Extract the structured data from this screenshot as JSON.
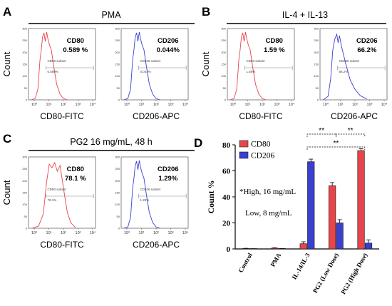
{
  "panels": {
    "A": {
      "letter": "A",
      "title": "PMA",
      "left": {
        "xlabel": "CD80-FITC",
        "marker": "CD80",
        "pct": "0.589 %",
        "subset_name": "CD80 subset",
        "subset_pct": "0.589%",
        "color": "#e8454a"
      },
      "right": {
        "xlabel": "CD206-APC",
        "marker": "CD206",
        "pct": "0.044%",
        "subset_name": "CD206 subset",
        "subset_pct": "0.044%",
        "color": "#3a3fd0"
      }
    },
    "B": {
      "letter": "B",
      "title": "IL-4 + IL-13",
      "left": {
        "xlabel": "CD80-FITC",
        "marker": "CD80",
        "pct": "1.59 %",
        "subset_name": "CD80 subset",
        "subset_pct": "1.59%",
        "color": "#e8454a"
      },
      "right": {
        "xlabel": "CD206-APC",
        "marker": "CD206",
        "pct": "66.2%",
        "subset_name": "CD206 subset",
        "subset_pct": "66.2%",
        "color": "#3a3fd0"
      }
    },
    "C": {
      "letter": "C",
      "title": "PG2 16 mg/mL, 48 h",
      "left": {
        "xlabel": "CD80-FITC",
        "marker": "CD80",
        "pct": "78.1 %",
        "subset_name": "CD80 subset",
        "subset_pct": "78.1%",
        "color": "#e8454a"
      },
      "right": {
        "xlabel": "CD206-APC",
        "marker": "CD206",
        "pct": "1.29%",
        "subset_name": "CD206 subset",
        "subset_pct": "1.29%",
        "color": "#3a3fd0"
      }
    },
    "D": {
      "letter": "D"
    }
  },
  "histogram_ylabel": "Count",
  "histogram_xticks": [
    "10⁰",
    "10¹",
    "10²",
    "10³",
    "10⁴"
  ],
  "histogram_yticks": [
    "0",
    "50",
    "100",
    "150",
    "200",
    "250",
    "300"
  ],
  "chart_data": {
    "type": "bar",
    "categories": [
      "Control",
      "PMA",
      "IL-14/IL-3",
      "PG2 (Low Dose)",
      "PG2 (High Dose)"
    ],
    "series": [
      {
        "name": "CD80",
        "color": "#e8454a",
        "values": [
          0.3,
          0.6,
          4.0,
          48.5,
          75.5
        ],
        "errors": [
          0.2,
          0.3,
          1.5,
          2.5,
          1.5
        ]
      },
      {
        "name": "CD206",
        "color": "#3a3fd0",
        "values": [
          0.0,
          0.1,
          67.0,
          20.0,
          4.5
        ],
        "errors": [
          0.0,
          0.1,
          2.0,
          2.5,
          2.5
        ]
      }
    ],
    "ylabel": "Count %",
    "ylim": [
      0,
      80
    ],
    "yticks": [
      0,
      20,
      40,
      60,
      80
    ],
    "legend": "top-left",
    "annotations": [
      "*High, 16 mg/mL",
      "Low, 8 mg/mL"
    ],
    "significance": [
      {
        "from": 2,
        "to": 3,
        "label": "**"
      },
      {
        "from": 3,
        "to": 4,
        "label": "**"
      },
      {
        "from": 2,
        "to": 4,
        "label": "**"
      }
    ]
  }
}
